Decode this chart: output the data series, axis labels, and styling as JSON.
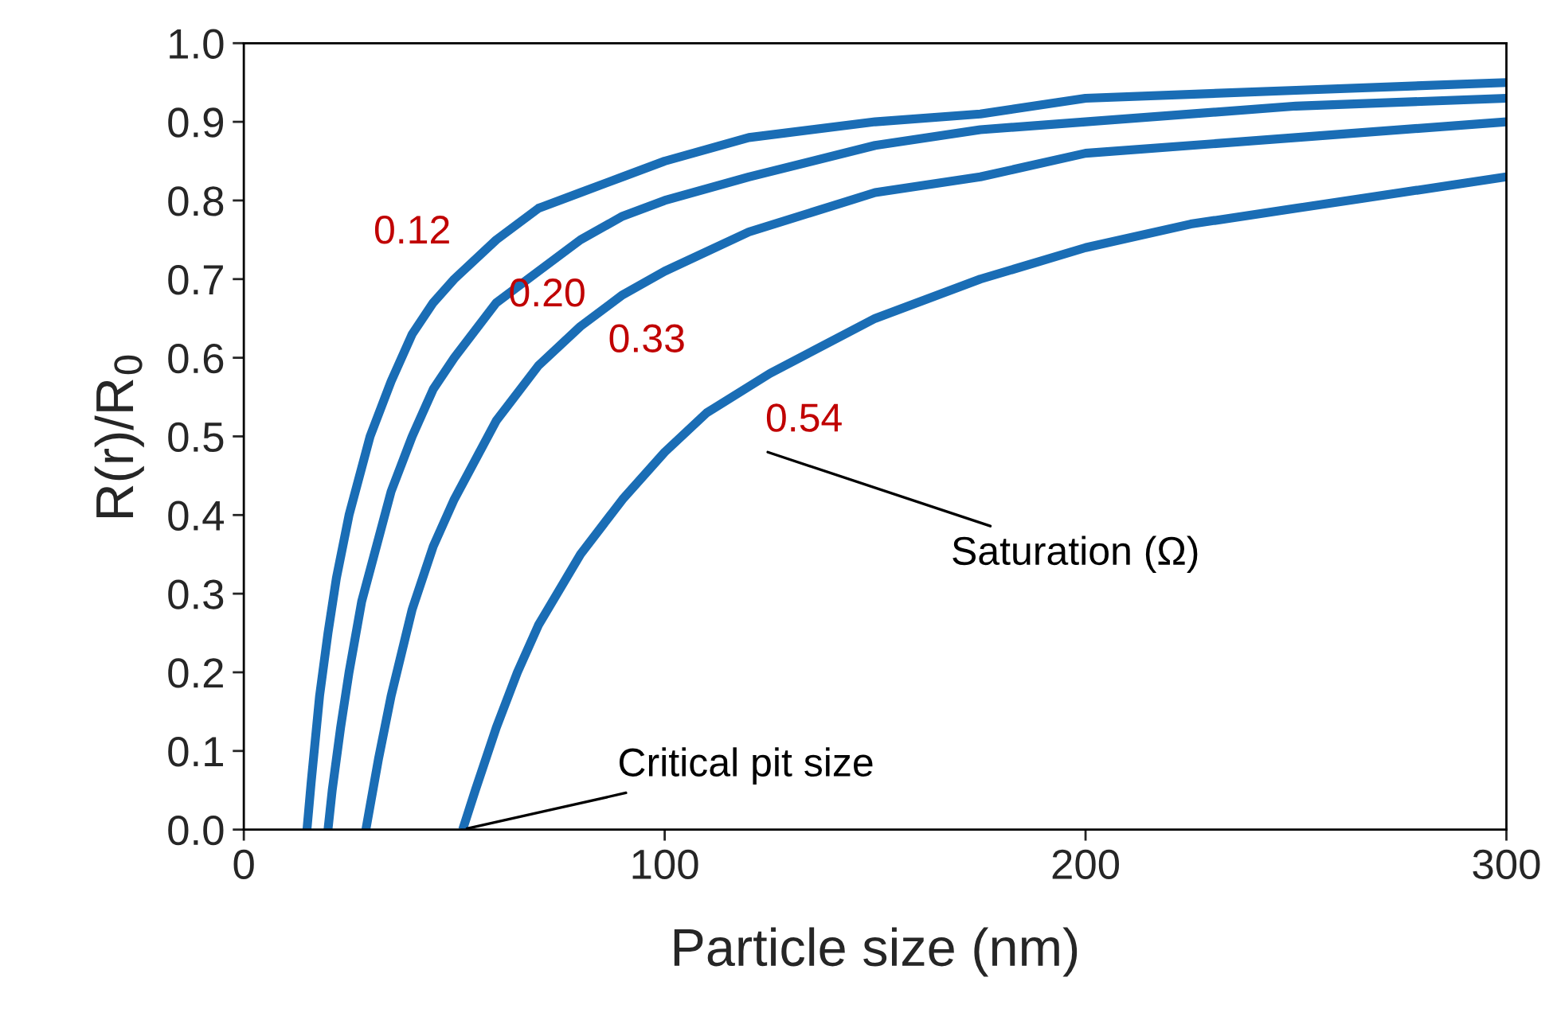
{
  "chart_data": {
    "type": "line",
    "xlabel": "Particle size (nm)",
    "ylabel": "R(r)/R$_{0}$",
    "xlim": [
      0,
      300
    ],
    "xticks": [
      0,
      100,
      200,
      300
    ],
    "ylim": [
      0,
      1
    ],
    "yticks": [
      {
        "value": 0,
        "label": "0.0"
      },
      {
        "value": 0.1,
        "label": "0.1"
      },
      {
        "value": 0.2,
        "label": "0.2"
      },
      {
        "value": 0.3,
        "label": "0.3"
      },
      {
        "value": 0.4,
        "label": "0.4"
      },
      {
        "value": 0.5,
        "label": "0.5"
      },
      {
        "value": 0.6,
        "label": "0.6"
      },
      {
        "value": 0.7,
        "label": "0.7"
      },
      {
        "value": 0.8,
        "label": "0.8"
      },
      {
        "value": 0.9,
        "label": "0.9"
      },
      {
        "value": 1.0,
        "label": "1.0"
      }
    ],
    "grid": false,
    "legend": false,
    "marker": "none",
    "line_style": "solid",
    "series": [
      {
        "name": "0.12",
        "color": "#1a6db5",
        "x": [
          15,
          16,
          18,
          20,
          22,
          25,
          30,
          35,
          40,
          45,
          50,
          60,
          70,
          80,
          90,
          100,
          120,
          150,
          175,
          200,
          250,
          300
        ],
        "values": [
          0,
          0.06,
          0.17,
          0.25,
          0.32,
          0.4,
          0.5,
          0.57,
          0.63,
          0.67,
          0.7,
          0.75,
          0.79,
          0.81,
          0.83,
          0.85,
          0.88,
          0.9,
          0.91,
          0.93,
          0.94,
          0.95
        ]
      },
      {
        "name": "0.20",
        "color": "#1a6db5",
        "x": [
          20,
          21,
          23,
          25,
          28,
          30,
          35,
          40,
          45,
          50,
          60,
          70,
          80,
          90,
          100,
          120,
          150,
          175,
          200,
          250,
          300
        ],
        "values": [
          0,
          0.05,
          0.13,
          0.2,
          0.29,
          0.33,
          0.43,
          0.5,
          0.56,
          0.6,
          0.67,
          0.71,
          0.75,
          0.78,
          0.8,
          0.83,
          0.87,
          0.89,
          0.9,
          0.92,
          0.93
        ]
      },
      {
        "name": "0.33",
        "color": "#1a6db5",
        "x": [
          29,
          30,
          32,
          35,
          40,
          45,
          50,
          60,
          70,
          80,
          90,
          100,
          120,
          150,
          175,
          200,
          250,
          300
        ],
        "values": [
          0,
          0.03,
          0.09,
          0.17,
          0.28,
          0.36,
          0.42,
          0.52,
          0.59,
          0.64,
          0.68,
          0.71,
          0.76,
          0.81,
          0.83,
          0.86,
          0.88,
          0.9
        ]
      },
      {
        "name": "0.54",
        "color": "#1a6db5",
        "x": [
          52,
          55,
          60,
          65,
          70,
          80,
          90,
          100,
          110,
          125,
          150,
          175,
          200,
          225,
          250,
          275,
          300
        ],
        "values": [
          0,
          0.05,
          0.13,
          0.2,
          0.26,
          0.35,
          0.42,
          0.48,
          0.53,
          0.58,
          0.65,
          0.7,
          0.74,
          0.77,
          0.79,
          0.81,
          0.83
        ]
      }
    ],
    "annotations": [
      "Saturation (Ω)",
      {
        "text": "Critical pit size",
        "x": 52,
        "y": 0
      }
    ]
  }
}
